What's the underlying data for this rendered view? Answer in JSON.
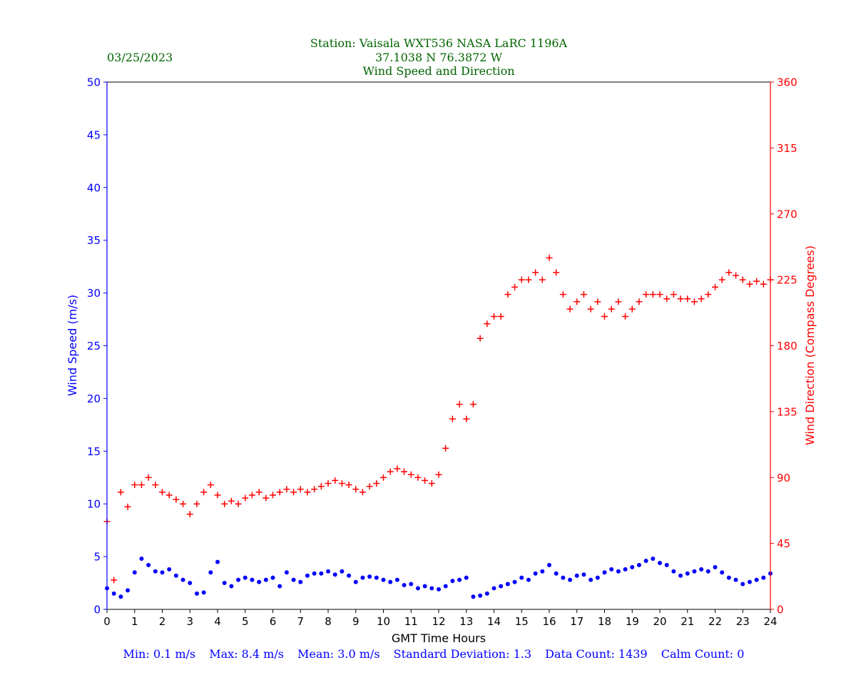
{
  "chart_data": {
    "type": "scatter",
    "title_lines": [
      "Station:  Vaisala WXT536  NASA LaRC 1196A",
      "37.1038 N 76.3872 W",
      "Wind Speed and Direction"
    ],
    "date": "03/25/2023",
    "xlabel": "GMT Time Hours",
    "ylabel_left": "Wind Speed (m/s)",
    "ylabel_right": "Wind Direction (Compass Degrees)",
    "xlim": [
      0,
      24
    ],
    "ylim_left": [
      0,
      50
    ],
    "ylim_right": [
      0,
      360
    ],
    "x_ticks": [
      0,
      1,
      2,
      3,
      4,
      5,
      6,
      7,
      8,
      9,
      10,
      11,
      12,
      13,
      14,
      15,
      16,
      17,
      18,
      19,
      20,
      21,
      22,
      23,
      24
    ],
    "y_ticks_left": [
      0,
      5,
      10,
      15,
      20,
      25,
      30,
      35,
      40,
      45,
      50
    ],
    "y_ticks_right": [
      0,
      45,
      90,
      135,
      180,
      225,
      270,
      315,
      360
    ],
    "grid": false,
    "series": [
      {
        "kind": "wind_speed",
        "marker": "dot",
        "color": "#0000ff",
        "axis": "left",
        "x": [
          0.0,
          0.25,
          0.5,
          0.75,
          1.0,
          1.25,
          1.5,
          1.75,
          2.0,
          2.25,
          2.5,
          2.75,
          3.0,
          3.25,
          3.5,
          3.75,
          4.0,
          4.25,
          4.5,
          4.75,
          5.0,
          5.25,
          5.5,
          5.75,
          6.0,
          6.25,
          6.5,
          6.75,
          7.0,
          7.25,
          7.5,
          7.75,
          8.0,
          8.25,
          8.5,
          8.75,
          9.0,
          9.25,
          9.5,
          9.75,
          10.0,
          10.25,
          10.5,
          10.75,
          11.0,
          11.25,
          11.5,
          11.75,
          12.0,
          12.25,
          12.5,
          12.75,
          13.0,
          13.25,
          13.5,
          13.75,
          14.0,
          14.25,
          14.5,
          14.75,
          15.0,
          15.25,
          15.5,
          15.75,
          16.0,
          16.25,
          16.5,
          16.75,
          17.0,
          17.25,
          17.5,
          17.75,
          18.0,
          18.25,
          18.5,
          18.75,
          19.0,
          19.25,
          19.5,
          19.75,
          20.0,
          20.25,
          20.5,
          20.75,
          21.0,
          21.25,
          21.5,
          21.75,
          22.0,
          22.25,
          22.5,
          22.75,
          23.0,
          23.25,
          23.5,
          23.75,
          24.0
        ],
        "y": [
          2.0,
          1.5,
          1.2,
          1.8,
          3.5,
          4.8,
          4.2,
          3.6,
          3.5,
          3.8,
          3.2,
          2.8,
          2.5,
          1.5,
          1.6,
          3.5,
          4.5,
          2.5,
          2.2,
          2.8,
          3.0,
          2.8,
          2.6,
          2.8,
          3.0,
          2.2,
          3.5,
          2.8,
          2.6,
          3.2,
          3.4,
          3.4,
          3.6,
          3.3,
          3.6,
          3.2,
          2.6,
          3.0,
          3.1,
          3.0,
          2.8,
          2.6,
          2.8,
          2.3,
          2.4,
          2.0,
          2.2,
          2.0,
          1.9,
          2.2,
          2.7,
          2.8,
          3.0,
          1.2,
          1.3,
          1.5,
          2.0,
          2.2,
          2.4,
          2.6,
          3.0,
          2.8,
          3.4,
          3.6,
          4.2,
          3.4,
          3.0,
          2.8,
          3.2,
          3.3,
          2.8,
          3.0,
          3.5,
          3.8,
          3.6,
          3.8,
          4.0,
          4.2,
          4.6,
          4.8,
          4.4,
          4.2,
          3.6,
          3.2,
          3.4,
          3.6,
          3.8,
          3.6,
          4.0,
          3.5,
          3.0,
          2.8,
          2.4,
          2.6,
          2.8,
          3.0,
          3.4
        ]
      },
      {
        "kind": "wind_direction",
        "marker": "plus",
        "color": "#ff0000",
        "axis": "right",
        "x": [
          0.0,
          0.25,
          0.5,
          0.75,
          1.0,
          1.25,
          1.5,
          1.75,
          2.0,
          2.25,
          2.5,
          2.75,
          3.0,
          3.25,
          3.5,
          3.75,
          4.0,
          4.25,
          4.5,
          4.75,
          5.0,
          5.25,
          5.5,
          5.75,
          6.0,
          6.25,
          6.5,
          6.75,
          7.0,
          7.25,
          7.5,
          7.75,
          8.0,
          8.25,
          8.5,
          8.75,
          9.0,
          9.25,
          9.5,
          9.75,
          10.0,
          10.25,
          10.5,
          10.75,
          11.0,
          11.25,
          11.5,
          11.75,
          12.0,
          12.25,
          12.5,
          12.75,
          13.0,
          13.25,
          13.5,
          13.75,
          14.0,
          14.25,
          14.5,
          14.75,
          15.0,
          15.25,
          15.5,
          15.75,
          16.0,
          16.25,
          16.5,
          16.75,
          17.0,
          17.25,
          17.5,
          17.75,
          18.0,
          18.25,
          18.5,
          18.75,
          19.0,
          19.25,
          19.5,
          19.75,
          20.0,
          20.25,
          20.5,
          20.75,
          21.0,
          21.25,
          21.5,
          21.75,
          22.0,
          22.25,
          22.5,
          22.75,
          23.0,
          23.25,
          23.5,
          23.75,
          24.0
        ],
        "y": [
          60,
          20,
          80,
          70,
          85,
          85,
          90,
          85,
          80,
          78,
          75,
          72,
          65,
          72,
          80,
          85,
          78,
          72,
          74,
          72,
          76,
          78,
          80,
          76,
          78,
          80,
          82,
          80,
          82,
          80,
          82,
          84,
          86,
          88,
          86,
          85,
          82,
          80,
          84,
          86,
          90,
          94,
          96,
          94,
          92,
          90,
          88,
          86,
          92,
          110,
          130,
          140,
          130,
          140,
          185,
          195,
          200,
          200,
          215,
          220,
          225,
          225,
          230,
          225,
          240,
          230,
          215,
          205,
          210,
          215,
          205,
          210,
          200,
          205,
          210,
          200,
          205,
          210,
          215,
          215,
          215,
          212,
          215,
          212,
          212,
          210,
          212,
          215,
          220,
          225,
          230,
          228,
          225,
          222,
          224,
          222,
          225
        ]
      }
    ],
    "stats": {
      "min": "Min: 0.1 m/s",
      "max": "Max: 8.4 m/s",
      "mean": "Mean: 3.0 m/s",
      "std": "Standard Deviation: 1.3",
      "count": "Data Count: 1439",
      "calm": "Calm Count:  0"
    },
    "colors": {
      "title": "#006400",
      "left_axis": "#0000ff",
      "right_axis": "#ff0000",
      "stats": "#0000ff"
    }
  }
}
